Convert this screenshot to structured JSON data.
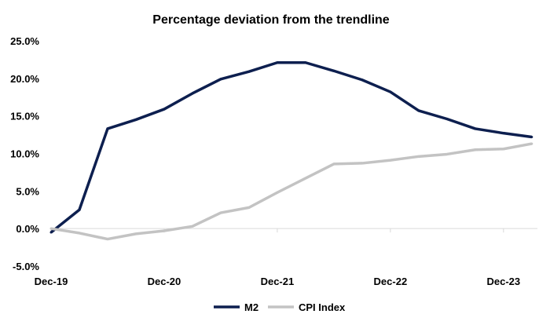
{
  "chart_data": {
    "type": "line",
    "title": "Percentage deviation from the trendline",
    "xlabel": "",
    "ylabel": "",
    "x_tick_labels": [
      "Dec-19",
      "Dec-20",
      "Dec-21",
      "Dec-22",
      "Dec-23"
    ],
    "x_tick_positions": [
      0,
      4,
      8,
      12,
      16
    ],
    "x": [
      0,
      1,
      2,
      3,
      4,
      5,
      6,
      7,
      8,
      9,
      10,
      11,
      12,
      13,
      14,
      15,
      16,
      17
    ],
    "y_tick_labels": [
      "-5.0%",
      "0.0%",
      "5.0%",
      "10.0%",
      "15.0%",
      "20.0%",
      "25.0%"
    ],
    "y_tick_values": [
      -5,
      0,
      5,
      10,
      15,
      20,
      25
    ],
    "ylim": [
      -5,
      25
    ],
    "xlim": [
      0,
      17.2
    ],
    "grid": false,
    "legend_position": "bottom",
    "series": [
      {
        "name": "M2",
        "color": "#0d1f4f",
        "values": [
          -0.5,
          2.5,
          13.3,
          14.5,
          15.9,
          18.0,
          19.9,
          20.9,
          22.1,
          22.1,
          21.0,
          19.8,
          18.2,
          15.7,
          14.6,
          13.3,
          12.7,
          12.2
        ]
      },
      {
        "name": "CPI Index",
        "color": "#c3c3c3",
        "values": [
          0.0,
          -0.6,
          -1.4,
          -0.7,
          -0.3,
          0.3,
          2.1,
          2.8,
          4.8,
          6.7,
          8.6,
          8.7,
          9.1,
          9.6,
          9.9,
          10.5,
          10.6,
          11.3
        ]
      }
    ]
  }
}
